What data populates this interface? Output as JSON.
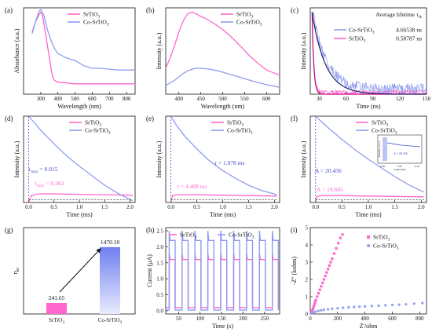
{
  "colors": {
    "pink": "#ff66cc",
    "blue": "#8f9cef",
    "blue_dark": "#3f4fc8",
    "axis": "#111111"
  },
  "chart_data": [
    {
      "id": "a",
      "type": "line",
      "panel_label": "(a)",
      "xlabel": "Wavelength (nm)",
      "ylabel": "Absorbance (a.u.)",
      "xlim": [
        200,
        850
      ],
      "ylim": [
        0,
        1
      ],
      "xticks": [
        300,
        400,
        500,
        600,
        700,
        800
      ],
      "legend": [
        "SrTiO3",
        "Co-SrTiO3"
      ],
      "series": [
        {
          "name": "SrTiO3",
          "x": [
            250,
            270,
            290,
            300,
            310,
            320,
            340,
            360,
            370,
            380,
            400,
            450,
            500,
            600,
            700,
            800,
            850
          ],
          "y": [
            0.72,
            0.84,
            0.92,
            0.95,
            0.92,
            0.8,
            0.55,
            0.3,
            0.2,
            0.16,
            0.14,
            0.13,
            0.12,
            0.12,
            0.12,
            0.12,
            0.12
          ]
        },
        {
          "name": "Co-SrTiO3",
          "x": [
            250,
            270,
            290,
            300,
            310,
            320,
            340,
            360,
            380,
            400,
            450,
            500,
            550,
            600,
            650,
            700,
            750,
            800,
            850
          ],
          "y": [
            0.7,
            0.84,
            0.96,
            0.98,
            0.95,
            0.9,
            0.74,
            0.62,
            0.53,
            0.47,
            0.42,
            0.39,
            0.33,
            0.3,
            0.3,
            0.29,
            0.28,
            0.28,
            0.28
          ]
        }
      ]
    },
    {
      "id": "b",
      "type": "line",
      "panel_label": "(b)",
      "xlabel": "Wavelength (nm)",
      "ylabel": "Intensity (a.u.)",
      "xlim": [
        370,
        630
      ],
      "ylim": [
        0,
        1
      ],
      "xticks": [
        400,
        450,
        500,
        550,
        600
      ],
      "legend": [
        "SrTiO3",
        "Co-SrTiO3"
      ],
      "series": [
        {
          "name": "SrTiO3",
          "x": [
            370,
            380,
            390,
            400,
            410,
            420,
            430,
            440,
            450,
            460,
            470,
            480,
            500,
            520,
            540,
            560,
            580,
            600,
            630
          ],
          "y": [
            0.3,
            0.42,
            0.56,
            0.72,
            0.85,
            0.93,
            0.95,
            0.93,
            0.9,
            0.88,
            0.85,
            0.82,
            0.75,
            0.66,
            0.56,
            0.45,
            0.36,
            0.28,
            0.22
          ]
        },
        {
          "name": "Co-SrTiO3",
          "x": [
            370,
            390,
            410,
            420,
            430,
            440,
            450,
            470,
            490,
            510,
            530,
            550,
            570,
            600,
            630
          ],
          "y": [
            0.1,
            0.16,
            0.24,
            0.27,
            0.29,
            0.3,
            0.3,
            0.29,
            0.27,
            0.24,
            0.21,
            0.18,
            0.15,
            0.11,
            0.08
          ]
        }
      ]
    },
    {
      "id": "c",
      "type": "line",
      "panel_label": "(c)",
      "xlabel": "Time (ns)",
      "ylabel": "Intensity (a.u.)",
      "xlim": [
        20,
        150
      ],
      "ylim": [
        0,
        1
      ],
      "xticks": [
        30,
        60,
        90,
        120,
        150
      ],
      "title_text": "Average lifetime τA",
      "legend": [
        {
          "name": "Co-SrTiO3",
          "value": "4.66538 ns"
        },
        {
          "name": "SrTiO3",
          "value": "0.58787 ns"
        }
      ],
      "series": [
        {
          "name": "SrTiO3",
          "tau": 0.58787
        },
        {
          "name": "Co-SrTiO3",
          "tau": 4.66538
        }
      ]
    },
    {
      "id": "d",
      "type": "line",
      "panel_label": "(d)",
      "xlabel": "Time (ms)",
      "ylabel": "Intensity (a.u.)",
      "xlim": [
        -0.1,
        2.1
      ],
      "ylim": [
        0,
        1
      ],
      "xticks": [
        0.0,
        0.5,
        1.0,
        1.5,
        2.0
      ],
      "legend": [
        "SrTiO3",
        "Co-SrTiO3"
      ],
      "annotations": [
        {
          "text": "τmax = 0.015",
          "color": "blue"
        },
        {
          "text": "τmax = 0.362",
          "color": "pink"
        }
      ],
      "series": [
        {
          "name": "SrTiO3",
          "x": [
            0,
            0.05,
            0.2,
            0.5,
            1.0,
            1.5,
            2.05
          ],
          "y": [
            0.0,
            0.08,
            0.1,
            0.1,
            0.095,
            0.09,
            0.085
          ]
        },
        {
          "name": "Co-SrTiO3",
          "x": [
            0,
            0.25,
            0.5,
            0.75,
            1.0,
            1.25,
            1.5,
            1.75,
            2.05
          ],
          "y": [
            1.0,
            0.83,
            0.68,
            0.54,
            0.42,
            0.31,
            0.2,
            0.11,
            0.02
          ]
        }
      ]
    },
    {
      "id": "e",
      "type": "line",
      "panel_label": "(e)",
      "xlabel": "Time (ms)",
      "ylabel": "Intensity (a.u.)",
      "xlim": [
        -0.1,
        2.1
      ],
      "ylim": [
        0,
        1
      ],
      "xticks": [
        0.0,
        0.5,
        1.0,
        1.5,
        2.0
      ],
      "legend": [
        "SrTiO3",
        "Co-SrTiO3"
      ],
      "annotations": [
        {
          "text": "τ = 1.078 ms",
          "color": "blue"
        },
        {
          "text": "τ = 4.408 ms",
          "color": "pink"
        }
      ],
      "series": [
        {
          "name": "SrTiO3",
          "x": [
            0,
            0.03,
            0.1,
            0.5,
            1.0,
            1.5,
            2.05
          ],
          "y": [
            0.0,
            0.08,
            0.09,
            0.09,
            0.085,
            0.08,
            0.075
          ]
        },
        {
          "name": "Co-SrTiO3",
          "x": [
            0,
            0.1,
            0.25,
            0.5,
            0.75,
            1.0,
            1.25,
            1.5,
            1.75,
            2.05
          ],
          "y": [
            1.0,
            0.9,
            0.78,
            0.62,
            0.48,
            0.37,
            0.28,
            0.2,
            0.14,
            0.09
          ]
        }
      ]
    },
    {
      "id": "f",
      "type": "line",
      "panel_label": "(f)",
      "xlabel": "Time (ms)",
      "ylabel": "Intensity (a.u.)",
      "xlim": [
        -0.1,
        2.1
      ],
      "ylim": [
        0,
        1
      ],
      "xticks": [
        0.0,
        0.5,
        1.0,
        1.5,
        2.0
      ],
      "legend": [
        "SrTiO3",
        "Co-SrTiO3"
      ],
      "annotations": [
        {
          "text": "A = 20.456",
          "color": "blue"
        },
        {
          "text": "A = 19.845",
          "color": "pink"
        }
      ],
      "inset": {
        "xlabel": "Time (ms)",
        "ylabel": "Intensity (a.u.)",
        "annotation": "A = 20.456",
        "xticks": [
          "0.00",
          "0.05",
          "0.10"
        ]
      },
      "series": [
        {
          "name": "SrTiO3",
          "x": [
            0,
            0.03,
            0.1,
            0.5,
            1.0,
            1.5,
            2.05
          ],
          "y": [
            0.0,
            0.07,
            0.08,
            0.08,
            0.075,
            0.07,
            0.065
          ]
        },
        {
          "name": "Co-SrTiO3",
          "x": [
            0,
            0.25,
            0.5,
            0.75,
            1.0,
            1.25,
            1.5,
            1.75,
            2.05
          ],
          "y": [
            1.0,
            0.86,
            0.73,
            0.61,
            0.5,
            0.4,
            0.3,
            0.21,
            0.12
          ]
        }
      ]
    },
    {
      "id": "g",
      "type": "bar",
      "panel_label": "(g)",
      "ylabel": "ηer",
      "categories": [
        "SrTiO3",
        "Co-SrTiO3"
      ],
      "values": [
        241.65,
        1470.1
      ],
      "value_labels": [
        "241.65",
        "1470.10"
      ],
      "ylim": [
        0,
        1900
      ]
    },
    {
      "id": "h",
      "type": "line",
      "panel_label": "(h)",
      "xlabel": "Time (s)",
      "ylabel": "Current (μA)",
      "xlim": [
        20,
        285
      ],
      "ylim": [
        -0.1,
        2.6
      ],
      "xticks": [
        50,
        100,
        150,
        200,
        250
      ],
      "yticks": [
        0.0,
        0.5,
        1.0,
        1.5,
        2.0,
        2.5
      ],
      "legend": [
        "SrTiO3",
        "Co-SrTiO3"
      ],
      "on_periods": [
        [
          28,
          42
        ],
        [
          58,
          72
        ],
        [
          88,
          102
        ],
        [
          118,
          132
        ],
        [
          148,
          162
        ],
        [
          178,
          192
        ],
        [
          208,
          222
        ],
        [
          238,
          252
        ],
        [
          268,
          282
        ]
      ],
      "series": [
        {
          "name": "SrTiO3",
          "on_level": 1.6,
          "peak": 1.8,
          "off_level": 0.1
        },
        {
          "name": "Co-SrTiO3",
          "on_level": 2.2,
          "peak": 2.5,
          "off_level": 0.02
        }
      ]
    },
    {
      "id": "i",
      "type": "scatter",
      "panel_label": "(i)",
      "xlabel": "Z'/ohm",
      "ylabel": "-Z'' (kohm)",
      "xlim": [
        0,
        850
      ],
      "ylim": [
        0,
        5
      ],
      "xticks": [
        0,
        200,
        400,
        600,
        800
      ],
      "yticks": [
        0,
        1,
        2,
        3,
        4,
        5
      ],
      "legend": [
        "SrTiO3",
        "Co-SrTiO3"
      ],
      "series": [
        {
          "name": "SrTiO3",
          "x": [
            5,
            10,
            15,
            20,
            25,
            30,
            35,
            40,
            50,
            60,
            70,
            80,
            90,
            100,
            110,
            120,
            130,
            140,
            150,
            160,
            175,
            190,
            205,
            220,
            235
          ],
          "y": [
            0.05,
            0.12,
            0.2,
            0.3,
            0.42,
            0.55,
            0.68,
            0.8,
            1.0,
            1.2,
            1.4,
            1.6,
            1.8,
            2.0,
            2.2,
            2.4,
            2.6,
            2.8,
            3.0,
            3.2,
            3.5,
            3.8,
            4.1,
            4.4,
            4.6
          ]
        },
        {
          "name": "Co-SrTiO3",
          "x": [
            5,
            15,
            25,
            40,
            60,
            80,
            100,
            130,
            160,
            200,
            240,
            280,
            320,
            360,
            400,
            450,
            500,
            550,
            600,
            650,
            700,
            760,
            820
          ],
          "y": [
            0.02,
            0.06,
            0.1,
            0.14,
            0.18,
            0.21,
            0.24,
            0.27,
            0.3,
            0.33,
            0.36,
            0.38,
            0.4,
            0.42,
            0.44,
            0.46,
            0.48,
            0.5,
            0.52,
            0.54,
            0.56,
            0.6,
            0.63
          ]
        }
      ]
    }
  ]
}
